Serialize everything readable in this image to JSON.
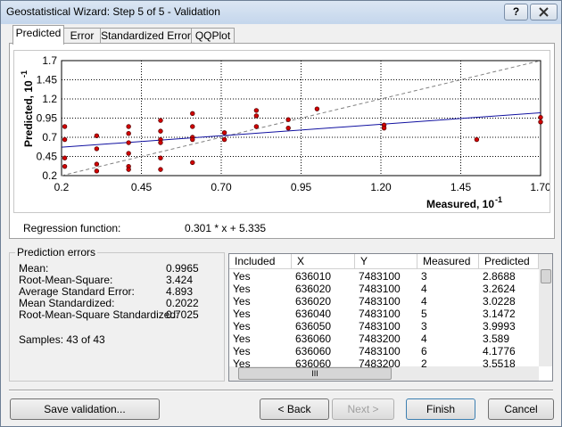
{
  "window": {
    "title": "Geostatistical Wizard: Step 5 of 5 - Validation",
    "help": "?"
  },
  "tabs": [
    "Predicted",
    "Error",
    "Standardized Error",
    "QQPlot"
  ],
  "chart_data": {
    "type": "scatter",
    "x_label": "Measured, 10",
    "x_label_exponent": "-1",
    "y_label": "Predicted, 10",
    "y_label_exponent": "-1",
    "x": [
      0.21,
      0.21,
      0.21,
      0.21,
      0.31,
      0.31,
      0.31,
      0.31,
      0.41,
      0.41,
      0.41,
      0.41,
      0.41,
      0.41,
      0.51,
      0.51,
      0.51,
      0.51,
      0.51,
      0.51,
      0.61,
      0.61,
      0.61,
      0.61,
      0.61,
      0.71,
      0.71,
      0.81,
      0.81,
      0.81,
      0.91,
      0.91,
      1.0,
      1.21,
      1.21,
      1.5,
      1.7,
      1.7
    ],
    "y": [
      0.84,
      0.67,
      0.43,
      0.32,
      0.72,
      0.55,
      0.35,
      0.26,
      0.84,
      0.75,
      0.63,
      0.49,
      0.32,
      0.28,
      0.92,
      0.78,
      0.67,
      0.63,
      0.43,
      0.28,
      1.01,
      0.84,
      0.7,
      0.67,
      0.37,
      0.76,
      0.67,
      1.05,
      0.98,
      0.84,
      0.93,
      0.82,
      1.07,
      0.86,
      0.82,
      0.67,
      0.96,
      0.9
    ],
    "color": "#d40000",
    "edge_color": "#5a0000",
    "regression_line": {
      "x": [
        0.2,
        1.7
      ],
      "y": [
        0.57,
        1.02
      ],
      "color": "#1010a0"
    },
    "reference_line": {
      "x": [
        0.2,
        1.7
      ],
      "y": [
        0.2,
        1.7
      ],
      "color": "#808080"
    },
    "xlim": [
      0.2,
      1.7
    ],
    "ylim": [
      0.2,
      1.7
    ],
    "xticks": [
      0.2,
      0.45,
      {
        "value": 0.7,
        "label": "0.70"
      },
      0.95,
      {
        "value": 1.2,
        "label": "1.20"
      },
      1.45,
      {
        "value": 1.7,
        "label": "1.70"
      }
    ],
    "yticks": [
      0.2,
      0.45,
      0.7,
      0.95,
      1.2,
      1.45,
      1.7
    ],
    "grid": true
  },
  "regression": {
    "label": "Regression function:",
    "value": "0.301 * x + 5.335"
  },
  "prediction_errors": {
    "title": "Prediction errors",
    "rows": [
      [
        "Mean:",
        "0.9965"
      ],
      [
        "Root-Mean-Square:",
        "3.424"
      ],
      [
        "Average Standard Error:",
        "4.893"
      ],
      [
        "Mean Standardized:",
        "0.2022"
      ],
      [
        "Root-Mean-Square Standardized:",
        "0.7025"
      ]
    ],
    "samples": "Samples: 43 of 43"
  },
  "table": {
    "columns": [
      "Included",
      "X",
      "Y",
      "Measured",
      "Predicted"
    ],
    "rows": [
      [
        "Yes",
        "636010",
        "7483100",
        "3",
        "2.8688"
      ],
      [
        "Yes",
        "636020",
        "7483100",
        "4",
        "3.2624"
      ],
      [
        "Yes",
        "636020",
        "7483100",
        "4",
        "3.0228"
      ],
      [
        "Yes",
        "636040",
        "7483100",
        "5",
        "3.1472"
      ],
      [
        "Yes",
        "636050",
        "7483100",
        "3",
        "3.9993"
      ],
      [
        "Yes",
        "636060",
        "7483200",
        "4",
        "3.589"
      ],
      [
        "Yes",
        "636060",
        "7483100",
        "6",
        "4.1776"
      ],
      [
        "Yes",
        "636060",
        "7483200",
        "2",
        "3.5518"
      ]
    ],
    "scroll_label": "III"
  },
  "buttons": {
    "save": "Save validation...",
    "back": "< Back",
    "next": "Next >",
    "finish": "Finish",
    "cancel": "Cancel"
  }
}
